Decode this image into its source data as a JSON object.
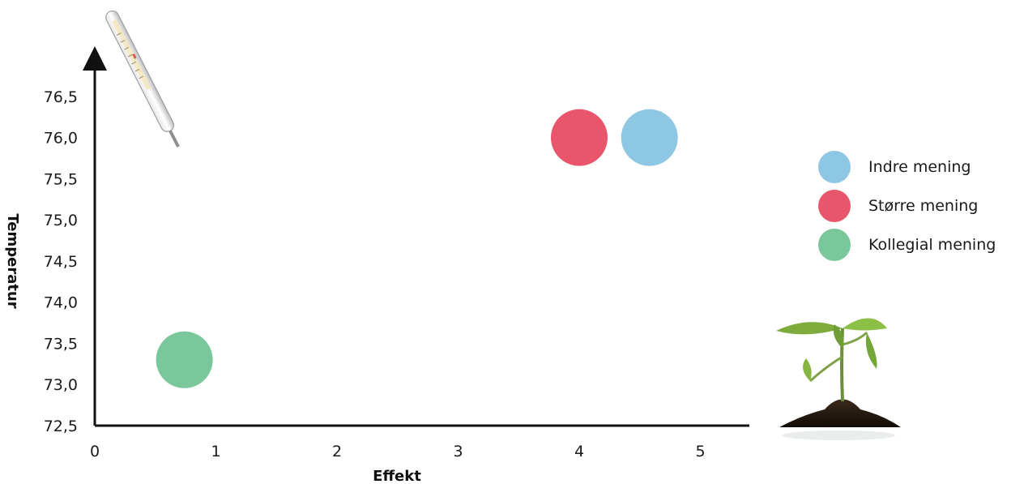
{
  "chart_data": {
    "type": "scatter",
    "xlabel": "Effekt",
    "ylabel": "Temperatur",
    "xlim": [
      0,
      5.4
    ],
    "ylim": [
      72.5,
      77.1
    ],
    "x_ticks": [
      "0",
      "1",
      "2",
      "3",
      "4",
      "5"
    ],
    "y_ticks": [
      "72,5",
      "73,0",
      "73,5",
      "74,0",
      "74,5",
      "75,0",
      "75,5",
      "76,0",
      "76,5"
    ],
    "series": [
      {
        "name": "Indre mening",
        "color": "#8ec7e3",
        "x": 4.58,
        "y": 76.0
      },
      {
        "name": "Større mening",
        "color": "#e9566b",
        "x": 4.0,
        "y": 76.0
      },
      {
        "name": "Kollegial mening",
        "color": "#79c79b",
        "x": 0.74,
        "y": 73.3
      }
    ],
    "legend_position": "right",
    "grid": false
  },
  "decorations": [
    "thermometer-image",
    "plant-seedling-image"
  ]
}
